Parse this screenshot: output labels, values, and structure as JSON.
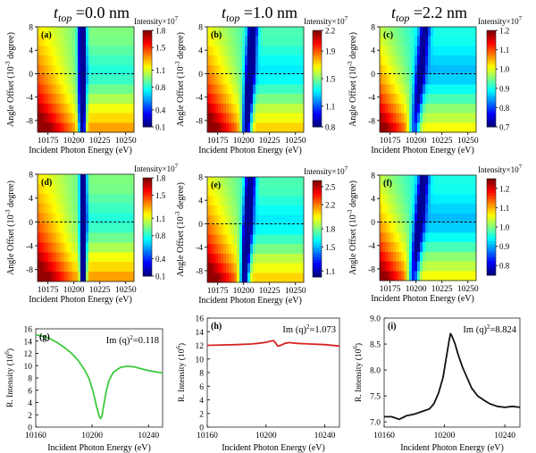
{
  "headers": [
    {
      "t": "t",
      "sub": "top",
      "val": " =0.0 nm"
    },
    {
      "t": "t",
      "sub": "top",
      "val": " =1.0 nm"
    },
    {
      "t": "t",
      "sub": "top",
      "val": " =2.2 nm"
    }
  ],
  "colors": {
    "line_g": "#3ec93e",
    "line_h": "#d62424",
    "line_i": "#111111",
    "frame": "#222222",
    "dash": "#111111"
  },
  "chart_data": [
    {
      "panel": "(a)",
      "type": "heatmap",
      "xlabel": "Incident Photon Energy (eV)",
      "ylabel": "Angle Offset (10^-3 degree)",
      "xlim": [
        10165,
        10258
      ],
      "ylim": [
        -10,
        8
      ],
      "xticks": [
        "10175",
        "10200",
        "10225",
        "10250"
      ],
      "yticks": [
        "8",
        "4",
        "0",
        "-4",
        "-8"
      ],
      "colorbar": {
        "title": "Intensity×10^7",
        "ticks": [
          "1.8",
          "1.5",
          "1.1",
          "0.8",
          "0.4",
          "0.1"
        ],
        "min": 0.1,
        "max": 1.8
      },
      "dip_center_eV": 10208,
      "dip_width_eV": 3.5,
      "dip_tilt": 0.0,
      "dip_depth": 0.85,
      "background": 0.5,
      "ramp_left": 0.4,
      "dashed_line_y": 0
    },
    {
      "panel": "(b)",
      "type": "heatmap",
      "xlabel": "Incident Photon Energy (eV)",
      "ylabel": "Angle Offset (10^-3 degree)",
      "xlim": [
        10165,
        10258
      ],
      "ylim": [
        -10,
        8
      ],
      "xticks": [
        "10175",
        "10200",
        "10225",
        "10250"
      ],
      "yticks": [
        "8",
        "4",
        "0",
        "-4",
        "-8"
      ],
      "colorbar": {
        "title": "Intensity×10^7",
        "ticks": [
          "2.2",
          "1.9",
          "1.5",
          "1.1",
          "0.8"
        ],
        "min": 0.8,
        "max": 2.2
      },
      "dip_center_eV": 10206,
      "dip_width_eV": 4.5,
      "dip_tilt": 0.35,
      "dip_depth": 0.7,
      "background": 0.45,
      "ramp_left": 0.45,
      "dashed_line_y": 0
    },
    {
      "panel": "(c)",
      "type": "heatmap",
      "xlabel": "Incident Photon Energy (eV)",
      "ylabel": "Angle Offset (10^-3 degree)",
      "xlim": [
        10165,
        10258
      ],
      "ylim": [
        -10,
        8
      ],
      "xticks": [
        "10175",
        "10200",
        "10225",
        "10250"
      ],
      "yticks": [
        "8",
        "4",
        "0",
        "-4",
        "-8"
      ],
      "colorbar": {
        "title": "Intensity×10^7",
        "ticks": [
          "1.2",
          "1.1",
          "1.0",
          "0.9",
          "0.8",
          "0.7"
        ],
        "min": 0.7,
        "max": 1.2
      },
      "dip_center_eV": 10204,
      "dip_width_eV": 5,
      "dip_tilt": 0.6,
      "dip_depth": 0.45,
      "background": 0.4,
      "ramp_left": 0.45,
      "dashed_line_y": 0
    },
    {
      "panel": "(d)",
      "type": "heatmap",
      "xlabel": "Incident Photon Energy (eV)",
      "ylabel": "Angle Offset (10^-3 degree)",
      "xlim": [
        10165,
        10258
      ],
      "ylim": [
        -10,
        8
      ],
      "xticks": [
        "10175",
        "10200",
        "10225",
        "10250"
      ],
      "yticks": [
        "8",
        "4",
        "0",
        "-4",
        "-8"
      ],
      "colorbar": {
        "title": "Intensity×10^7",
        "ticks": [
          "1.8",
          "1.5",
          "1.1",
          "0.8",
          "0.4",
          "0.1"
        ],
        "min": 0.1,
        "max": 1.8
      },
      "dip_center_eV": 10209,
      "dip_width_eV": 3,
      "dip_tilt": 0.0,
      "dip_depth": 0.85,
      "background": 0.5,
      "ramp_left": 0.4,
      "dashed_line_y": 0
    },
    {
      "panel": "(e)",
      "type": "heatmap",
      "xlabel": "Incident Photon Energy (eV)",
      "ylabel": "Angle Offset (10^-3 degree)",
      "xlim": [
        10165,
        10258
      ],
      "ylim": [
        -10,
        8
      ],
      "xticks": [
        "10175",
        "10200",
        "10225",
        "10250"
      ],
      "yticks": [
        "8",
        "4",
        "0",
        "-4",
        "-8"
      ],
      "colorbar": {
        "title": "Intensity×10^7",
        "ticks": [
          "2.5",
          "2.2",
          "1.8",
          "1.5",
          "1.1"
        ],
        "min": 1.0,
        "max": 2.6
      },
      "dip_center_eV": 10204,
      "dip_width_eV": 4.5,
      "dip_tilt": 0.35,
      "dip_depth": 0.7,
      "background": 0.45,
      "ramp_left": 0.45,
      "dashed_line_y": 0
    },
    {
      "panel": "(f)",
      "type": "heatmap",
      "xlabel": "Incident Photon Energy (eV)",
      "ylabel": "Angle Offset (10^-3 degree)",
      "xlim": [
        10165,
        10258
      ],
      "ylim": [
        -10,
        8
      ],
      "xticks": [
        "10175",
        "10200",
        "10225",
        "10250"
      ],
      "yticks": [
        "8",
        "4",
        "0",
        "-4",
        "-8"
      ],
      "colorbar": {
        "title": "Intensity×10^7",
        "ticks": [
          "1.2",
          "1.1",
          "1.0",
          "0.9",
          "0.8"
        ],
        "min": 0.75,
        "max": 1.25
      },
      "dip_center_eV": 10203,
      "dip_width_eV": 5,
      "dip_tilt": 0.6,
      "dip_depth": 0.5,
      "background": 0.4,
      "ramp_left": 0.45,
      "dashed_line_y": 0
    },
    {
      "panel": "(g)",
      "type": "line",
      "xlabel": "Incident Photon Energy (eV)",
      "ylabel": "R. Intensity (10^6)",
      "annotation": "Im (q)^2=0.118",
      "xlim": [
        10160,
        10250
      ],
      "ylim": [
        0,
        16
      ],
      "xticks": [
        "10160",
        "10200",
        "10240"
      ],
      "yticks": [
        "16",
        "14",
        "12",
        "10",
        "8",
        "6",
        "4",
        "2",
        "0"
      ],
      "x": [
        10160,
        10165,
        10170,
        10175,
        10180,
        10185,
        10190,
        10195,
        10198,
        10201,
        10203,
        10205,
        10206,
        10207,
        10208,
        10210,
        10212,
        10215,
        10220,
        10225,
        10230,
        10235,
        10240,
        10245,
        10250
      ],
      "y": [
        15.0,
        14.8,
        14.4,
        13.8,
        13.0,
        12.1,
        10.9,
        9.2,
        7.8,
        5.5,
        3.5,
        1.8,
        1.4,
        1.8,
        3.2,
        5.8,
        7.6,
        8.9,
        9.7,
        9.9,
        9.8,
        9.5,
        9.2,
        9.0,
        8.8
      ]
    },
    {
      "panel": "(h)",
      "type": "line",
      "xlabel": "Incident Photon Energy (eV)",
      "ylabel": "R. Intensity (10^6)",
      "annotation": "Im (q)^2=1.073",
      "xlim": [
        10160,
        10250
      ],
      "ylim": [
        0,
        16
      ],
      "xticks": [
        "10160",
        "10200",
        "10240"
      ],
      "yticks": [
        "16",
        "14",
        "12",
        "10",
        "8",
        "6",
        "4",
        "2",
        "0"
      ],
      "x": [
        10160,
        10170,
        10180,
        10190,
        10195,
        10200,
        10203,
        10205,
        10206,
        10208,
        10210,
        10213,
        10216,
        10220,
        10230,
        10240,
        10250
      ],
      "y": [
        12.0,
        12.05,
        12.1,
        12.2,
        12.3,
        12.45,
        12.6,
        12.7,
        12.5,
        11.9,
        12.0,
        12.3,
        12.4,
        12.3,
        12.2,
        12.1,
        11.9
      ]
    },
    {
      "panel": "(i)",
      "type": "line",
      "xlabel": "Incident Photon Energy (eV)",
      "ylabel": "R. Intensity (10^6)",
      "annotation": "Im (q)^2=8.824",
      "xlim": [
        10160,
        10250
      ],
      "ylim": [
        6.9,
        9.0
      ],
      "xticks": [
        "10160",
        "10200",
        "10240"
      ],
      "yticks": [
        "9.0",
        "8.5",
        "8.0",
        "7.5",
        "7.0"
      ],
      "x": [
        10160,
        10165,
        10170,
        10175,
        10180,
        10185,
        10190,
        10193,
        10196,
        10199,
        10201,
        10203,
        10204,
        10205,
        10207,
        10209,
        10212,
        10215,
        10218,
        10222,
        10226,
        10230,
        10235,
        10240,
        10245,
        10250
      ],
      "y": [
        7.1,
        7.1,
        7.05,
        7.12,
        7.15,
        7.2,
        7.25,
        7.35,
        7.55,
        7.85,
        8.2,
        8.55,
        8.7,
        8.65,
        8.5,
        8.3,
        8.05,
        7.85,
        7.65,
        7.5,
        7.42,
        7.35,
        7.3,
        7.28,
        7.3,
        7.28
      ]
    }
  ]
}
